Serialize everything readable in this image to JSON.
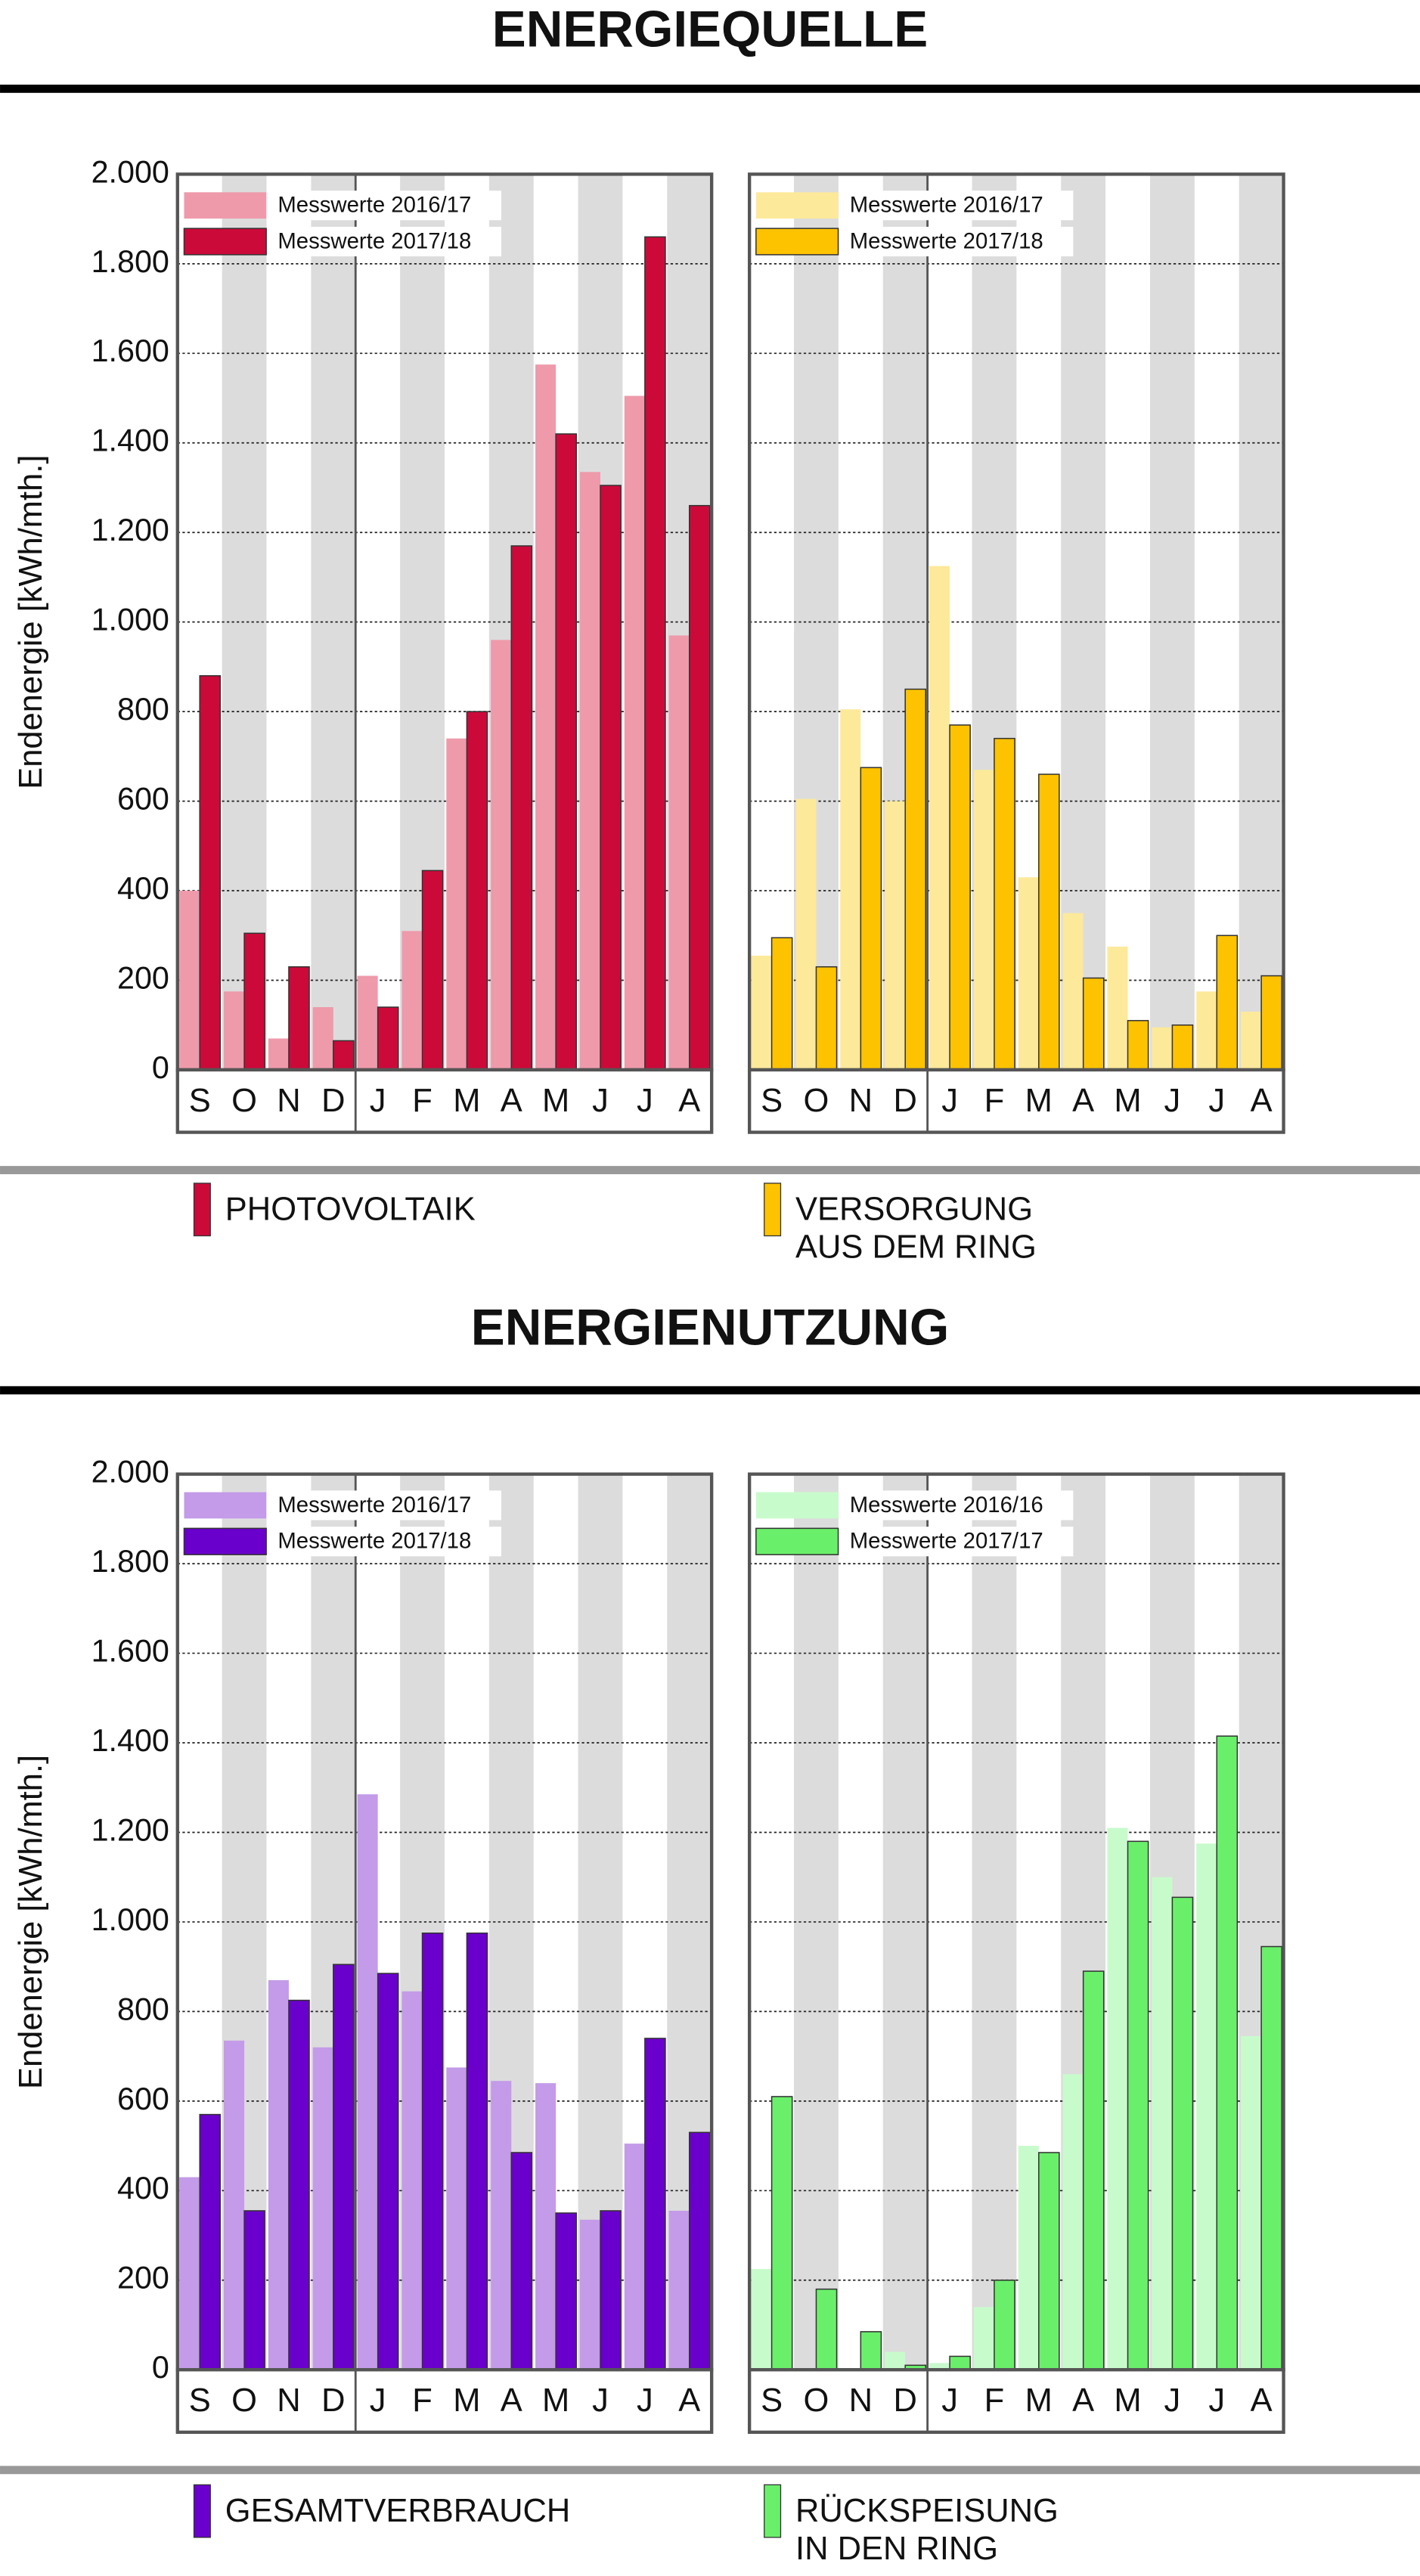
{
  "sections": [
    {
      "title": "ENERGIEQUELLE",
      "legend": [
        {
          "lines": [
            "PHOTOVOLTAIK"
          ],
          "color": "#cc0a3a"
        },
        {
          "lines": [
            "VERSORGUNG",
            "AUS DEM RING"
          ],
          "color": "#fdc300"
        }
      ]
    },
    {
      "title": "ENERGIENUTZUNG",
      "legend": [
        {
          "lines": [
            "GESAMTVERBRAUCH"
          ],
          "color": "#6a00cc"
        },
        {
          "lines": [
            "RÜCKSPEISUNG",
            "IN DEN RING"
          ],
          "color": "#6aef6a"
        }
      ]
    }
  ],
  "chart_data": [
    {
      "type": "bar",
      "ylabel": "Endenergie [kWh/mth.]",
      "categories": [
        "S",
        "O",
        "N",
        "D",
        "J",
        "F",
        "M",
        "A",
        "M",
        "J",
        "J",
        "A"
      ],
      "series": [
        {
          "name": "Messwerte 2016/17",
          "color": "#ee9aab",
          "values": [
            400,
            175,
            70,
            140,
            210,
            310,
            740,
            960,
            1575,
            1335,
            1505,
            970
          ]
        },
        {
          "name": "Messwerte 2017/18",
          "color": "#cc0a3a",
          "values": [
            880,
            305,
            230,
            65,
            140,
            445,
            800,
            1170,
            1420,
            1305,
            1860,
            1260
          ]
        }
      ],
      "ylim": [
        0,
        2000
      ],
      "yticks": [
        0,
        200,
        400,
        600,
        800,
        {
          "value": 1000,
          "label": "1.000"
        },
        {
          "value": 1200,
          "label": "1.200"
        },
        {
          "value": 1400,
          "label": "1.400"
        },
        {
          "value": 1600,
          "label": "1.600"
        },
        {
          "value": 1800,
          "label": "1.800"
        },
        {
          "value": 2000,
          "label": "2.000"
        }
      ],
      "tick_labels": true,
      "grid": true
    },
    {
      "type": "bar",
      "categories": [
        "S",
        "O",
        "N",
        "D",
        "J",
        "F",
        "M",
        "A",
        "M",
        "J",
        "J",
        "A"
      ],
      "series": [
        {
          "name": "Messwerte 2016/17",
          "color": "#fde99a",
          "values": [
            255,
            605,
            805,
            600,
            1125,
            670,
            430,
            350,
            275,
            95,
            175,
            130
          ]
        },
        {
          "name": "Messwerte 2017/18",
          "color": "#fdc300",
          "values": [
            295,
            230,
            675,
            850,
            770,
            740,
            660,
            205,
            110,
            100,
            300,
            210
          ]
        }
      ],
      "ylim": [
        0,
        2000
      ],
      "yticks": [
        0,
        200,
        400,
        600,
        800,
        1000,
        1200,
        1400,
        1600,
        1800,
        2000
      ],
      "tick_labels": false,
      "grid": true
    },
    {
      "type": "bar",
      "ylabel": "Endenergie [kWh/mth.]",
      "categories": [
        "S",
        "O",
        "N",
        "D",
        "J",
        "F",
        "M",
        "A",
        "M",
        "J",
        "J",
        "A"
      ],
      "series": [
        {
          "name": "Messwerte 2016/17",
          "color": "#c39be8",
          "values": [
            430,
            735,
            870,
            720,
            1285,
            845,
            675,
            645,
            640,
            335,
            505,
            355
          ]
        },
        {
          "name": "Messwerte 2017/18",
          "color": "#6a00cc",
          "values": [
            570,
            355,
            825,
            905,
            885,
            975,
            975,
            485,
            350,
            355,
            740,
            530
          ]
        }
      ],
      "ylim": [
        0,
        2000
      ],
      "yticks": [
        0,
        200,
        400,
        600,
        800,
        {
          "value": 1000,
          "label": "1.000"
        },
        {
          "value": 1200,
          "label": "1.200"
        },
        {
          "value": 1400,
          "label": "1.400"
        },
        {
          "value": 1600,
          "label": "1.600"
        },
        {
          "value": 1800,
          "label": "1.800"
        },
        {
          "value": 2000,
          "label": "2.000"
        }
      ],
      "tick_labels": true,
      "grid": true
    },
    {
      "type": "bar",
      "categories": [
        "S",
        "O",
        "N",
        "D",
        "J",
        "F",
        "M",
        "A",
        "M",
        "J",
        "J",
        "A"
      ],
      "series": [
        {
          "name": "Messwerte 2016/16",
          "color": "#c8fbcc",
          "values": [
            225,
            0,
            0,
            40,
            15,
            140,
            500,
            660,
            1210,
            1100,
            1175,
            745
          ]
        },
        {
          "name": "Messwerte 2017/17",
          "color": "#6aef6a",
          "values": [
            610,
            180,
            85,
            10,
            30,
            200,
            485,
            890,
            1180,
            1055,
            1415,
            945
          ]
        }
      ],
      "ylim": [
        0,
        2000
      ],
      "yticks": [
        0,
        200,
        400,
        600,
        800,
        1000,
        1200,
        1400,
        1600,
        1800,
        2000
      ],
      "tick_labels": false,
      "grid": true
    }
  ]
}
